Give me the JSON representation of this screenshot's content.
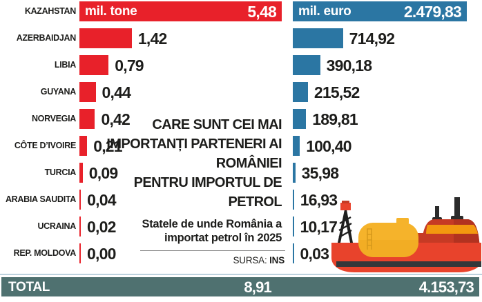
{
  "chart_data": {
    "type": "bar",
    "categories": [
      "KAZAHSTAN",
      "AZERBAIDJAN",
      "LIBIA",
      "GUYANA",
      "NORVEGIA",
      "CÔTE D’IVOIRE",
      "TURCIA",
      "ARABIA SAUDITA",
      "UCRAINA",
      "REP. MOLDOVA"
    ],
    "series": [
      {
        "name": "mil. tone",
        "color": "#e8212a",
        "values": [
          5.48,
          1.42,
          0.79,
          0.44,
          0.42,
          0.21,
          0.09,
          0.04,
          0.02,
          0.0
        ],
        "labels": [
          "5,48",
          "1,42",
          "0,79",
          "0,44",
          "0,42",
          "0,21",
          "0,09",
          "0,04",
          "0,02",
          "0,00"
        ],
        "max": 5.48,
        "total": 8.91,
        "total_label": "8,91"
      },
      {
        "name": "mil. euro",
        "color": "#2b76a3",
        "values": [
          2479.83,
          714.92,
          390.18,
          215.52,
          189.81,
          100.4,
          35.98,
          16.93,
          10.17,
          0.03
        ],
        "labels": [
          "2.479,83",
          "714,92",
          "390,18",
          "215,52",
          "189,81",
          "100,40",
          "35,98",
          "16,93",
          "10,17",
          "0,03"
        ],
        "max": 2479.83,
        "total": 4153.73,
        "total_label": "4.153,73"
      }
    ],
    "title": "CARE SUNT CEI MAI IMPORTANȚI PARTENERI AI ROMÂNIEI PENTRU IMPORTUL DE PETROL",
    "subtitle": "Statele de unde România a importat petrol în 2025",
    "source": "SURSA: INS",
    "xlabel": "",
    "ylabel": "",
    "grid": false,
    "legend_position": "inside-first-bar"
  },
  "center": {
    "title_lines": [
      "CARE SUNT CEI MAI",
      "IMPORTANȚI PARTENERI AI",
      "ROMÂNIEI",
      "PENTRU IMPORTUL DE",
      "PETROL"
    ],
    "subtitle_lines": [
      "Statele de unde România a",
      "importat petrol în 2025"
    ],
    "source_label": "SURSA: ",
    "source_value": "INS"
  },
  "total_row": {
    "label": "TOTAL",
    "tone_value": "8,91",
    "euro_value": "4.153,73",
    "color": "#4f7170"
  },
  "colors": {
    "tone_bar": "#e8212a",
    "euro_bar": "#2b76a3",
    "total_bar": "#4f7170",
    "text": "#1d1d1b",
    "inside_bar_text": "#ffffff",
    "separator": "#bdd2de",
    "ship_hull_red": "#e8432c",
    "ship_dark_red": "#c63a24",
    "ship_yellow": "#f5b32b",
    "ship_orange_band": "#f3980f",
    "ship_black": "#2b2b2b"
  },
  "icons": {
    "ship": "oil-tanker-ship-icon"
  }
}
